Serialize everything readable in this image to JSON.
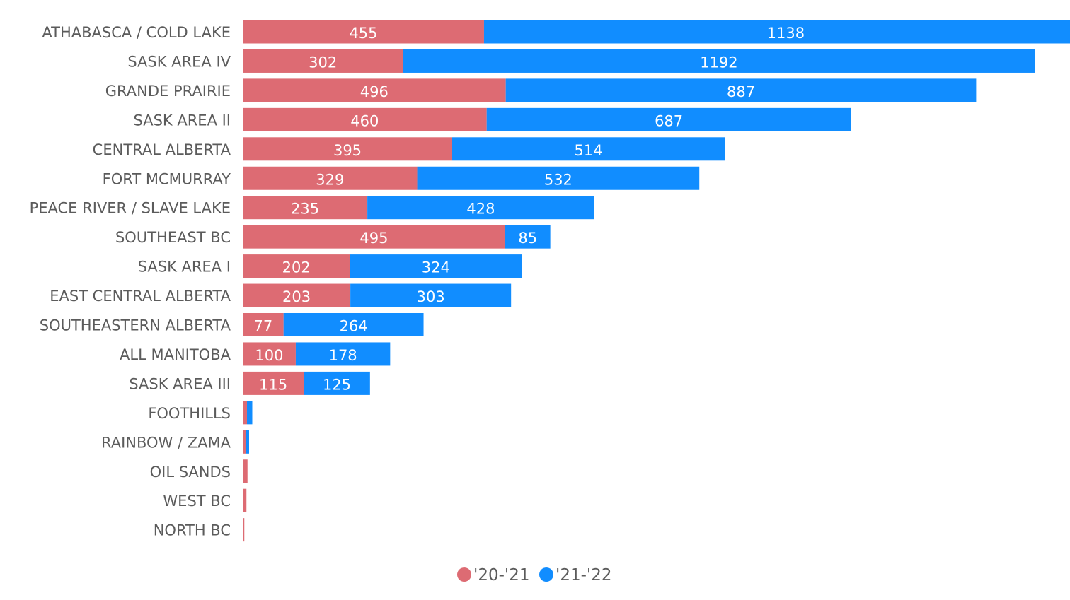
{
  "colors": {
    "series_2021": "#dd6b73",
    "series_2122": "#118dff"
  },
  "chart_data": {
    "type": "bar",
    "orientation": "horizontal",
    "stacked": true,
    "title": "",
    "xlabel": "",
    "ylabel": "",
    "xlim": [
      0,
      1600
    ],
    "grid": false,
    "legend_position": "bottom-center",
    "categories": [
      "ATHABASCA / COLD LAKE",
      "SASK AREA IV",
      "GRANDE PRAIRIE",
      "SASK AREA II",
      "CENTRAL ALBERTA",
      "FORT MCMURRAY",
      "PEACE RIVER / SLAVE LAKE",
      "SOUTHEAST BC",
      "SASK AREA I",
      "EAST CENTRAL ALBERTA",
      "SOUTHEASTERN ALBERTA",
      "ALL MANITOBA",
      "SASK AREA III",
      "FOOTHILLS",
      "RAINBOW / ZAMA",
      "OIL SANDS",
      "WEST BC",
      "NORTH BC"
    ],
    "series": [
      {
        "name": "'20-'21",
        "values": [
          455,
          302,
          496,
          460,
          395,
          329,
          235,
          495,
          202,
          203,
          77,
          100,
          115,
          8,
          6,
          9,
          7,
          3
        ]
      },
      {
        "name": "'21-'22",
        "values": [
          1138,
          1192,
          887,
          687,
          514,
          532,
          428,
          85,
          324,
          303,
          264,
          178,
          125,
          10,
          6,
          0,
          0,
          0
        ]
      }
    ],
    "data_labels": [
      [
        "455",
        "302",
        "496",
        "460",
        "395",
        "329",
        "235",
        "495",
        "202",
        "203",
        "77",
        "100",
        "115",
        "",
        "",
        "",
        "",
        ""
      ],
      [
        "1138",
        "1192",
        "887",
        "687",
        "514",
        "532",
        "428",
        "85",
        "324",
        "303",
        "264",
        "178",
        "125",
        "",
        "",
        "",
        "",
        ""
      ]
    ]
  }
}
